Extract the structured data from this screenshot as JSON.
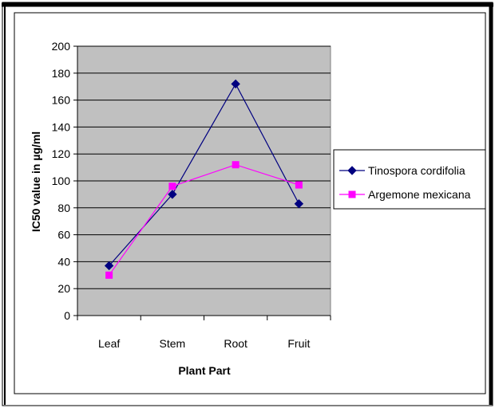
{
  "chart_data": {
    "type": "line",
    "categories": [
      "Leaf",
      "Stem",
      "Root",
      "Fruit"
    ],
    "series": [
      {
        "name": "Tinospora cordifolia",
        "values": [
          37,
          90,
          172,
          83
        ],
        "color": "#000080",
        "marker": "diamond"
      },
      {
        "name": "Argemone mexicana",
        "values": [
          30,
          96,
          112,
          97
        ],
        "color": "#ff00ff",
        "marker": "square"
      }
    ],
    "title": "",
    "xlabel": "Plant Part",
    "ylabel": "IC50 value in µg/ml",
    "ylim": [
      0,
      200
    ],
    "yticks": [
      "0",
      "20",
      "40",
      "60",
      "80",
      "100",
      "120",
      "140",
      "160",
      "180",
      "200"
    ],
    "grid": true,
    "legend_position": "right",
    "plot_background": "#c0c0c0"
  }
}
